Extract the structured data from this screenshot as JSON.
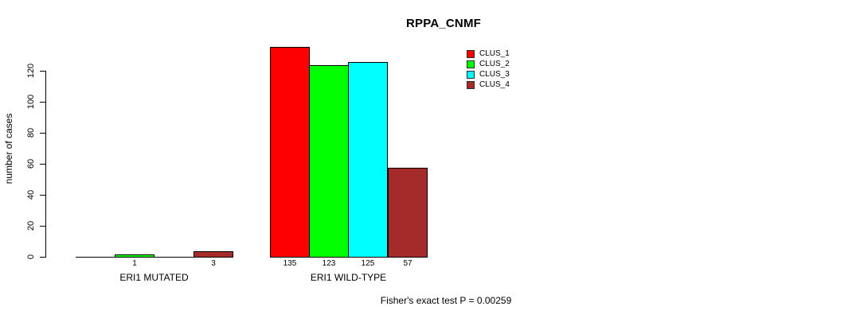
{
  "title": "RPPA_CNMF",
  "y_axis_label": "number of cases",
  "footer": "Fisher's exact test P = 0.00259",
  "legend": {
    "items": [
      {
        "label": "CLUS_1",
        "color": "#ff0000"
      },
      {
        "label": "CLUS_2",
        "color": "#00ff00"
      },
      {
        "label": "CLUS_3",
        "color": "#00ffff"
      },
      {
        "label": "CLUS_4",
        "color": "#a52a2a"
      }
    ]
  },
  "chart_data": {
    "type": "bar",
    "title": "RPPA_CNMF",
    "xlabel": "",
    "ylabel": "number of cases",
    "categories": [
      "ERI1 MUTATED",
      "ERI1 WILD-TYPE"
    ],
    "series": [
      {
        "name": "CLUS_1",
        "color": "#ff0000",
        "values": [
          0,
          135
        ]
      },
      {
        "name": "CLUS_2",
        "color": "#00ff00",
        "values": [
          1,
          123
        ]
      },
      {
        "name": "CLUS_3",
        "color": "#00ffff",
        "values": [
          0,
          125
        ]
      },
      {
        "name": "CLUS_4",
        "color": "#a52a2a",
        "values": [
          3,
          57
        ]
      }
    ],
    "bar_value_labels_shown": [
      "1",
      "3",
      "135",
      "123",
      "125",
      "57"
    ],
    "yticks": [
      0,
      20,
      40,
      60,
      80,
      100,
      120
    ],
    "ylim": [
      0,
      135
    ],
    "grid": false,
    "legend_position": "top-right",
    "annotation": "Fisher's exact test P = 0.00259",
    "zero_value_bars_unlabeled": true
  }
}
